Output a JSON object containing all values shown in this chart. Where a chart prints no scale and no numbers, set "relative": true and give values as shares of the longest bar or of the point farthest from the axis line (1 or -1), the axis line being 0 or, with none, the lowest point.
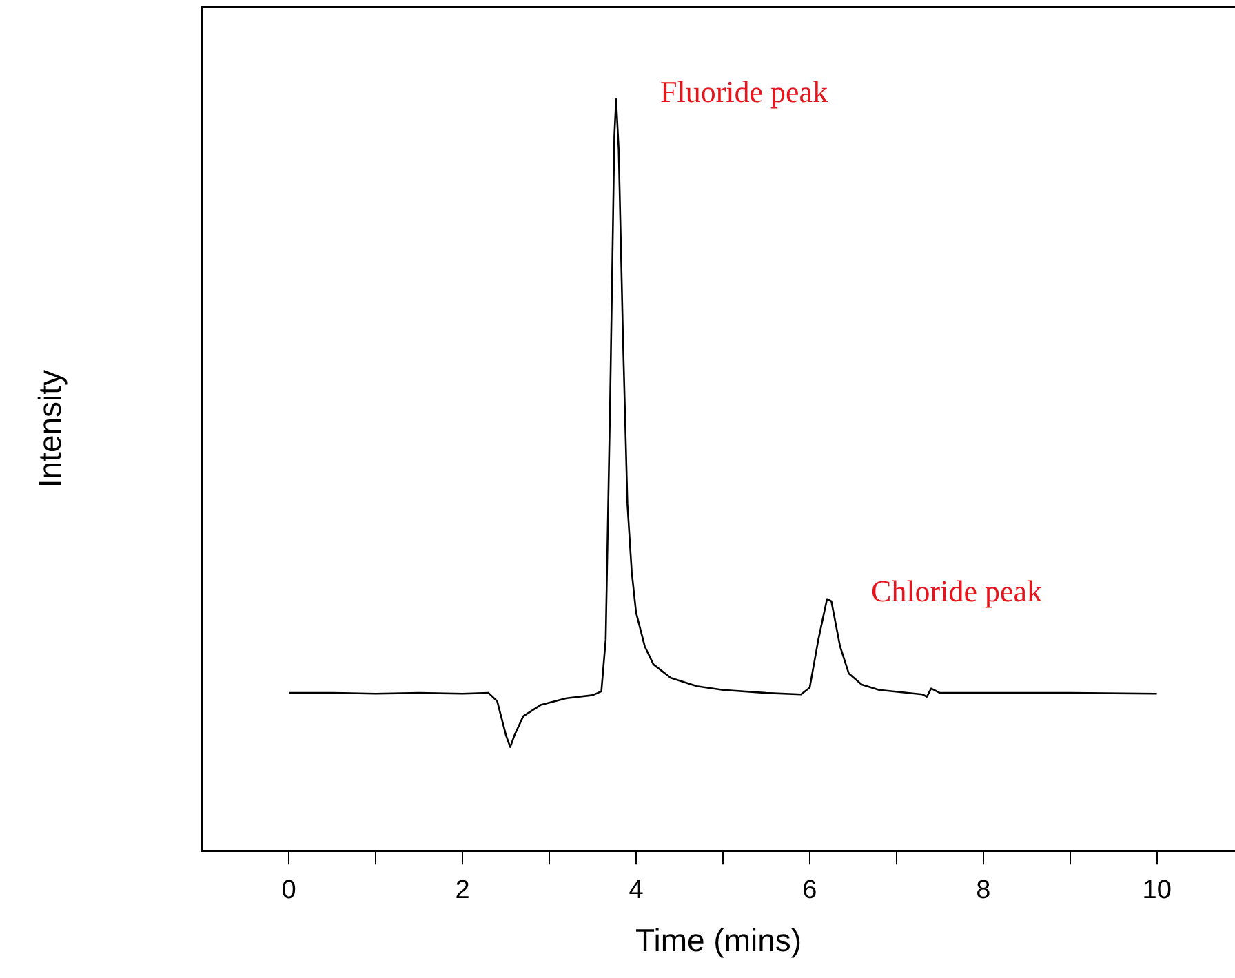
{
  "chart_data": {
    "type": "line",
    "xlabel": "Time (mins)",
    "ylabel": "Intensity",
    "relative": true,
    "xlim": [
      -1,
      10.9
    ],
    "xticks": [
      0,
      {
        "value": 1,
        "label": null
      },
      2,
      {
        "value": 3,
        "label": null
      },
      4,
      {
        "value": 5,
        "label": null
      },
      6,
      {
        "value": 7,
        "label": null
      },
      8,
      {
        "value": 9,
        "label": null
      },
      10
    ],
    "grid": false,
    "legend": false,
    "marker": "none",
    "line_style": "solid",
    "x": [
      0,
      0.5,
      1,
      1.5,
      2,
      2.3,
      2.4,
      2.5,
      2.55,
      2.6,
      2.7,
      2.9,
      3.2,
      3.5,
      3.6,
      3.65,
      3.7,
      3.75,
      3.77,
      3.8,
      3.85,
      3.9,
      3.95,
      4.0,
      4.1,
      4.2,
      4.4,
      4.7,
      5,
      5.5,
      5.9,
      6.0,
      6.1,
      6.2,
      6.25,
      6.35,
      6.45,
      6.6,
      6.8,
      7.3,
      7.35,
      7.4,
      7.5,
      8,
      9,
      10
    ],
    "series": [
      {
        "color": "#000000",
        "values": [
          0.21,
          0.21,
          0.209,
          0.21,
          0.209,
          0.21,
          0.199,
          0.154,
          0.138,
          0.154,
          0.179,
          0.194,
          0.203,
          0.207,
          0.212,
          0.281,
          0.589,
          0.951,
          1,
          0.933,
          0.679,
          0.462,
          0.371,
          0.317,
          0.272,
          0.248,
          0.23,
          0.219,
          0.214,
          0.21,
          0.208,
          0.217,
          0.281,
          0.335,
          0.332,
          0.272,
          0.236,
          0.221,
          0.214,
          0.208,
          0.205,
          0.216,
          0.21,
          0.21,
          0.21,
          0.209
        ]
      }
    ],
    "annotations": [
      {
        "text": "Fluoride peak",
        "x": 3.77,
        "y": 1
      },
      {
        "text": "Chloride peak",
        "x": 6.2,
        "y": 0.335
      }
    ]
  }
}
